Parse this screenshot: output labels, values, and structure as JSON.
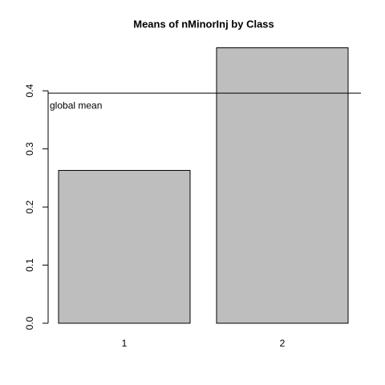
{
  "chart_data": {
    "type": "bar",
    "title": "Means of nMinorInj by Class",
    "categories": [
      "1",
      "2"
    ],
    "values": [
      0.263,
      0.474
    ],
    "color": "#bebebe",
    "ylim": [
      0,
      0.49
    ],
    "yticks": [
      {
        "value": 0,
        "label": "0.0"
      },
      0.1,
      0.2,
      0.3,
      0.4
    ],
    "reference_line": {
      "value": 0.396,
      "label": "global mean"
    }
  }
}
